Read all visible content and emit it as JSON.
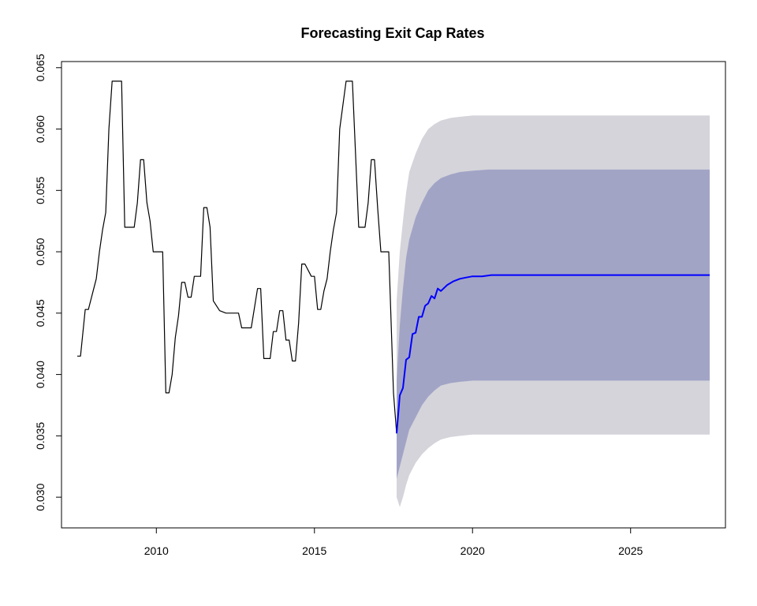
{
  "chart_data": {
    "type": "line",
    "title": "Forecasting Exit Cap Rates",
    "xlabel": "",
    "ylabel": "",
    "xlim": [
      2007.0,
      2028.0
    ],
    "ylim": [
      0.0275,
      0.0655
    ],
    "x_ticks": [
      2010,
      2015,
      2020,
      2025
    ],
    "x_tick_labels": [
      "2010",
      "2015",
      "2020",
      "2025"
    ],
    "y_ticks": [
      0.03,
      0.035,
      0.04,
      0.045,
      0.05,
      0.055,
      0.06,
      0.065
    ],
    "y_tick_labels": [
      "0.030",
      "0.035",
      "0.040",
      "0.045",
      "0.050",
      "0.055",
      "0.060",
      "0.065"
    ],
    "grid": false,
    "colors": {
      "history": "#000000",
      "forecast": "#0000ff",
      "band_80": "#a2a4c6",
      "band_95": "#d4d4da"
    },
    "series": [
      {
        "role": "history",
        "x": [
          2007.5,
          2007.6,
          2007.75,
          2007.85,
          2008.0,
          2008.1,
          2008.2,
          2008.3,
          2008.4,
          2008.5,
          2008.6,
          2008.7,
          2008.9,
          2009.0,
          2009.1,
          2009.2,
          2009.3,
          2009.4,
          2009.5,
          2009.6,
          2009.7,
          2009.8,
          2009.9,
          2010.0,
          2010.1,
          2010.2,
          2010.3,
          2010.4,
          2010.5,
          2010.6,
          2010.7,
          2010.8,
          2010.9,
          2011.0,
          2011.1,
          2011.2,
          2011.3,
          2011.4,
          2011.5,
          2011.6,
          2011.7,
          2011.8,
          2012.0,
          2012.2,
          2012.4,
          2012.6,
          2012.7,
          2012.8,
          2012.9,
          2013.0,
          2013.2,
          2013.3,
          2013.4,
          2013.6,
          2013.7,
          2013.8,
          2013.9,
          2014.0,
          2014.1,
          2014.2,
          2014.3,
          2014.4,
          2014.5,
          2014.6,
          2014.7,
          2014.9,
          2015.0,
          2015.1,
          2015.2,
          2015.3,
          2015.4,
          2015.5,
          2015.6,
          2015.7,
          2015.8,
          2016.0,
          2016.1,
          2016.2,
          2016.4,
          2016.5,
          2016.6,
          2016.7,
          2016.8,
          2016.9,
          2017.0,
          2017.1,
          2017.3,
          2017.35,
          2017.5,
          2017.6
        ],
        "values": [
          0.0415,
          0.0415,
          0.0453,
          0.0453,
          0.0468,
          0.0478,
          0.05,
          0.0518,
          0.0532,
          0.06,
          0.0639,
          0.0639,
          0.0639,
          0.052,
          0.052,
          0.052,
          0.052,
          0.054,
          0.0575,
          0.0575,
          0.054,
          0.0525,
          0.05,
          0.05,
          0.05,
          0.05,
          0.0385,
          0.0385,
          0.04,
          0.043,
          0.0448,
          0.0475,
          0.0475,
          0.0463,
          0.0463,
          0.048,
          0.048,
          0.048,
          0.0536,
          0.0536,
          0.052,
          0.046,
          0.0452,
          0.045,
          0.045,
          0.045,
          0.0438,
          0.0438,
          0.0438,
          0.0438,
          0.047,
          0.047,
          0.0413,
          0.0413,
          0.0435,
          0.0435,
          0.0452,
          0.0452,
          0.0428,
          0.0428,
          0.0411,
          0.0411,
          0.0442,
          0.049,
          0.049,
          0.048,
          0.048,
          0.0453,
          0.0453,
          0.0468,
          0.0478,
          0.05,
          0.0518,
          0.0532,
          0.06,
          0.0639,
          0.0639,
          0.0639,
          0.052,
          0.052,
          0.052,
          0.054,
          0.0575,
          0.0575,
          0.0535,
          0.05,
          0.05,
          0.05,
          0.0385,
          0.0352
        ]
      },
      {
        "role": "forecast",
        "x": [
          2017.6,
          2017.7,
          2017.8,
          2017.9,
          2018.0,
          2018.1,
          2018.2,
          2018.3,
          2018.4,
          2018.5,
          2018.6,
          2018.7,
          2018.8,
          2018.9,
          2019.0,
          2019.2,
          2019.4,
          2019.6,
          2019.8,
          2020.0,
          2020.3,
          2020.6,
          2021.0,
          2021.5,
          2022.0,
          2023.0,
          2024.0,
          2025.0,
          2026.0,
          2027.5
        ],
        "values": [
          0.0352,
          0.0383,
          0.0389,
          0.0412,
          0.0414,
          0.0433,
          0.0434,
          0.0447,
          0.0447,
          0.0456,
          0.0458,
          0.0464,
          0.0462,
          0.047,
          0.0468,
          0.0473,
          0.0476,
          0.0478,
          0.0479,
          0.048,
          0.048,
          0.0481,
          0.0481,
          0.0481,
          0.0481,
          0.0481,
          0.0481,
          0.0481,
          0.0481,
          0.0481
        ]
      }
    ],
    "band_x": [
      2017.6,
      2017.7,
      2017.8,
      2017.9,
      2018.0,
      2018.2,
      2018.4,
      2018.6,
      2018.8,
      2019.0,
      2019.3,
      2019.6,
      2020.0,
      2020.5,
      2021.0,
      2022.0,
      2023.0,
      2025.0,
      2027.5
    ],
    "band_80": {
      "lower": [
        0.0315,
        0.0325,
        0.0335,
        0.0345,
        0.0355,
        0.0365,
        0.0375,
        0.0382,
        0.0387,
        0.0391,
        0.0393,
        0.0394,
        0.0395,
        0.0395,
        0.0395,
        0.0395,
        0.0395,
        0.0395,
        0.0395
      ],
      "upper": [
        0.0395,
        0.044,
        0.047,
        0.0495,
        0.051,
        0.0528,
        0.054,
        0.055,
        0.0556,
        0.056,
        0.0563,
        0.0565,
        0.0566,
        0.0567,
        0.0567,
        0.0567,
        0.0567,
        0.0567,
        0.0567
      ]
    },
    "band_95": {
      "lower": [
        0.03,
        0.0292,
        0.03,
        0.031,
        0.0318,
        0.0328,
        0.0335,
        0.034,
        0.0344,
        0.0347,
        0.0349,
        0.035,
        0.0351,
        0.0351,
        0.0351,
        0.0351,
        0.0351,
        0.0351,
        0.0351
      ],
      "upper": [
        0.046,
        0.05,
        0.0525,
        0.0548,
        0.0565,
        0.058,
        0.0592,
        0.06,
        0.0604,
        0.0607,
        0.0609,
        0.061,
        0.0611,
        0.0611,
        0.0611,
        0.0611,
        0.0611,
        0.0611,
        0.0611
      ]
    }
  }
}
